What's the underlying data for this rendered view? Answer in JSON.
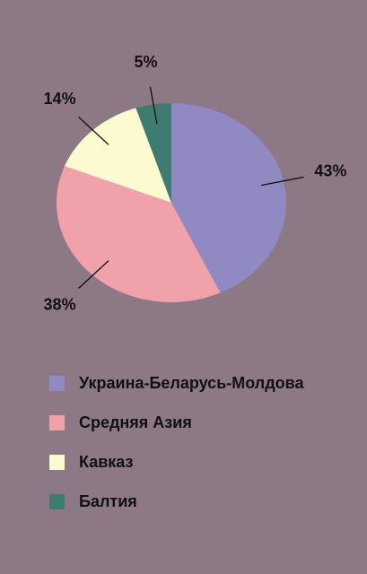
{
  "chart_data": {
    "type": "pie",
    "categories": [
      "Украина-Беларусь-Молдова",
      "Средняя Азия",
      "Кавказ",
      "Балтия"
    ],
    "values": [
      43,
      38,
      14,
      5
    ],
    "value_labels": [
      "43%",
      "38%",
      "14%",
      "5%"
    ],
    "colors": [
      "#9189c1",
      "#f0a1a9",
      "#fbfad0",
      "#3e7b70"
    ]
  }
}
